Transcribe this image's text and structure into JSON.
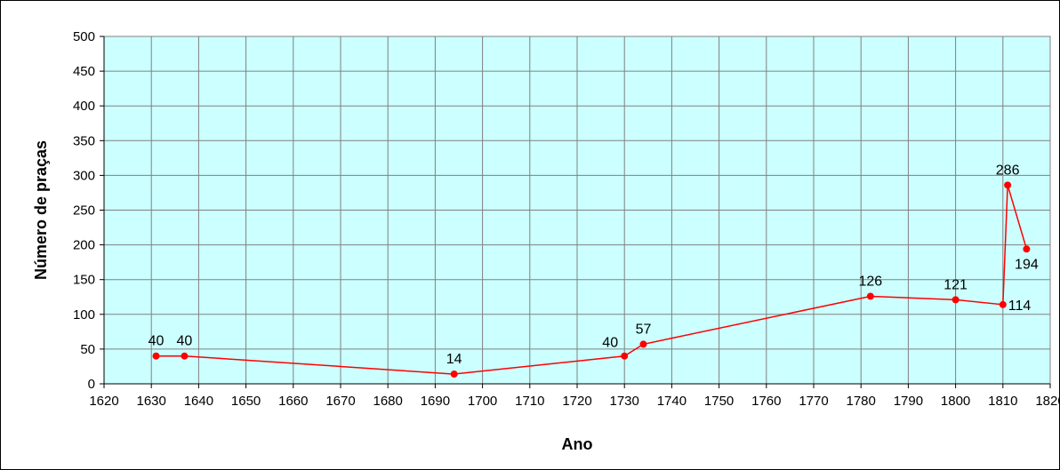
{
  "chart_data": {
    "type": "line",
    "xlabel": "Ano",
    "ylabel": "Número de praças",
    "xlim": [
      1620,
      1820
    ],
    "ylim": [
      0,
      500
    ],
    "x_ticks": [
      1620,
      1630,
      1640,
      1650,
      1660,
      1670,
      1680,
      1690,
      1700,
      1710,
      1720,
      1730,
      1740,
      1750,
      1760,
      1770,
      1780,
      1790,
      1800,
      1810,
      1820
    ],
    "y_ticks": [
      0,
      50,
      100,
      150,
      200,
      250,
      300,
      350,
      400,
      450,
      500
    ],
    "grid": true,
    "legend": "none",
    "series": [
      {
        "points": [
          {
            "x": 1631,
            "y": 40,
            "label": "40",
            "label_pos": "above"
          },
          {
            "x": 1637,
            "y": 40,
            "label": "40",
            "label_pos": "above"
          },
          {
            "x": 1694,
            "y": 14,
            "label": "14",
            "label_pos": "above"
          },
          {
            "x": 1730,
            "y": 40,
            "label": "40",
            "label_pos": "above-left"
          },
          {
            "x": 1734,
            "y": 57,
            "label": "57",
            "label_pos": "above"
          },
          {
            "x": 1782,
            "y": 126,
            "label": "126",
            "label_pos": "above"
          },
          {
            "x": 1800,
            "y": 121,
            "label": "121",
            "label_pos": "above"
          },
          {
            "x": 1810,
            "y": 114,
            "label": "114",
            "label_pos": "right"
          },
          {
            "x": 1811,
            "y": 286,
            "label": "286",
            "label_pos": "above"
          },
          {
            "x": 1815,
            "y": 194,
            "label": "194",
            "label_pos": "below"
          }
        ]
      }
    ],
    "colors": {
      "plot_background": "#CCFFFF",
      "gridline": "#808080",
      "series_line": "#FF0000",
      "marker": "#FF0000"
    }
  }
}
